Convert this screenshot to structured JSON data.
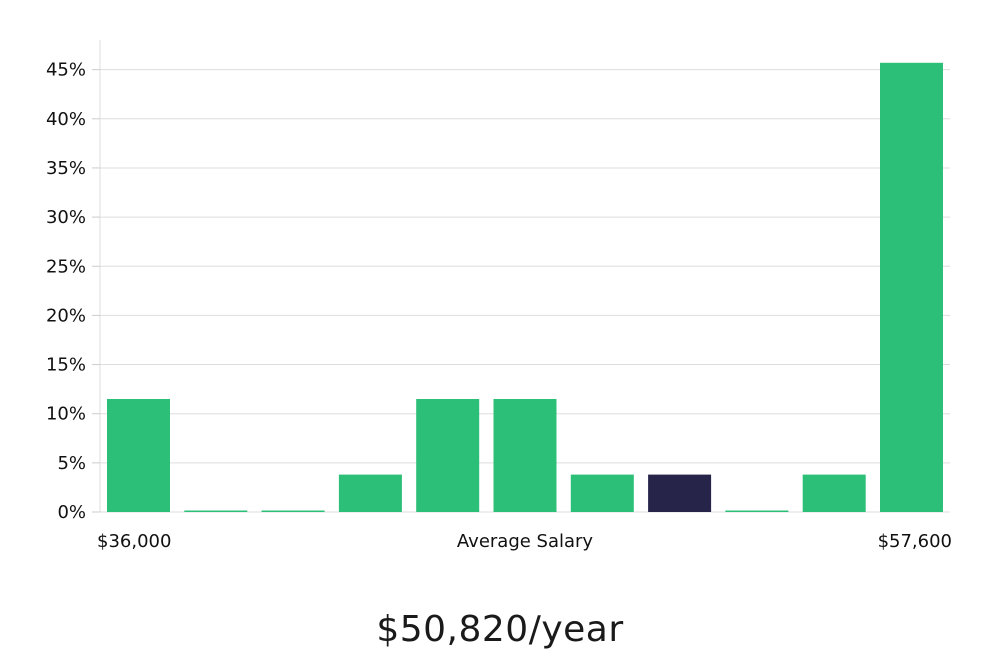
{
  "chart_data": {
    "type": "bar",
    "title": "",
    "xlabel": "Average Salary",
    "ylabel": "",
    "x_min_label": "$36,000",
    "x_max_label": "$57,600",
    "ylim": [
      0,
      48
    ],
    "yticks": [
      0,
      5,
      10,
      15,
      20,
      25,
      30,
      35,
      40,
      45
    ],
    "ytick_labels": [
      "0%",
      "5%",
      "10%",
      "15%",
      "20%",
      "25%",
      "30%",
      "35%",
      "40%",
      "45%"
    ],
    "values": [
      11.5,
      0.0,
      0.0,
      3.8,
      11.5,
      11.5,
      3.8,
      3.8,
      0.0,
      3.8,
      45.7
    ],
    "highlight_index": 7,
    "grid": true,
    "colors": {
      "bar": "#2bbf77",
      "highlight": "#27244a",
      "grid": "#dddddd"
    }
  },
  "headline": "$50,820/year"
}
